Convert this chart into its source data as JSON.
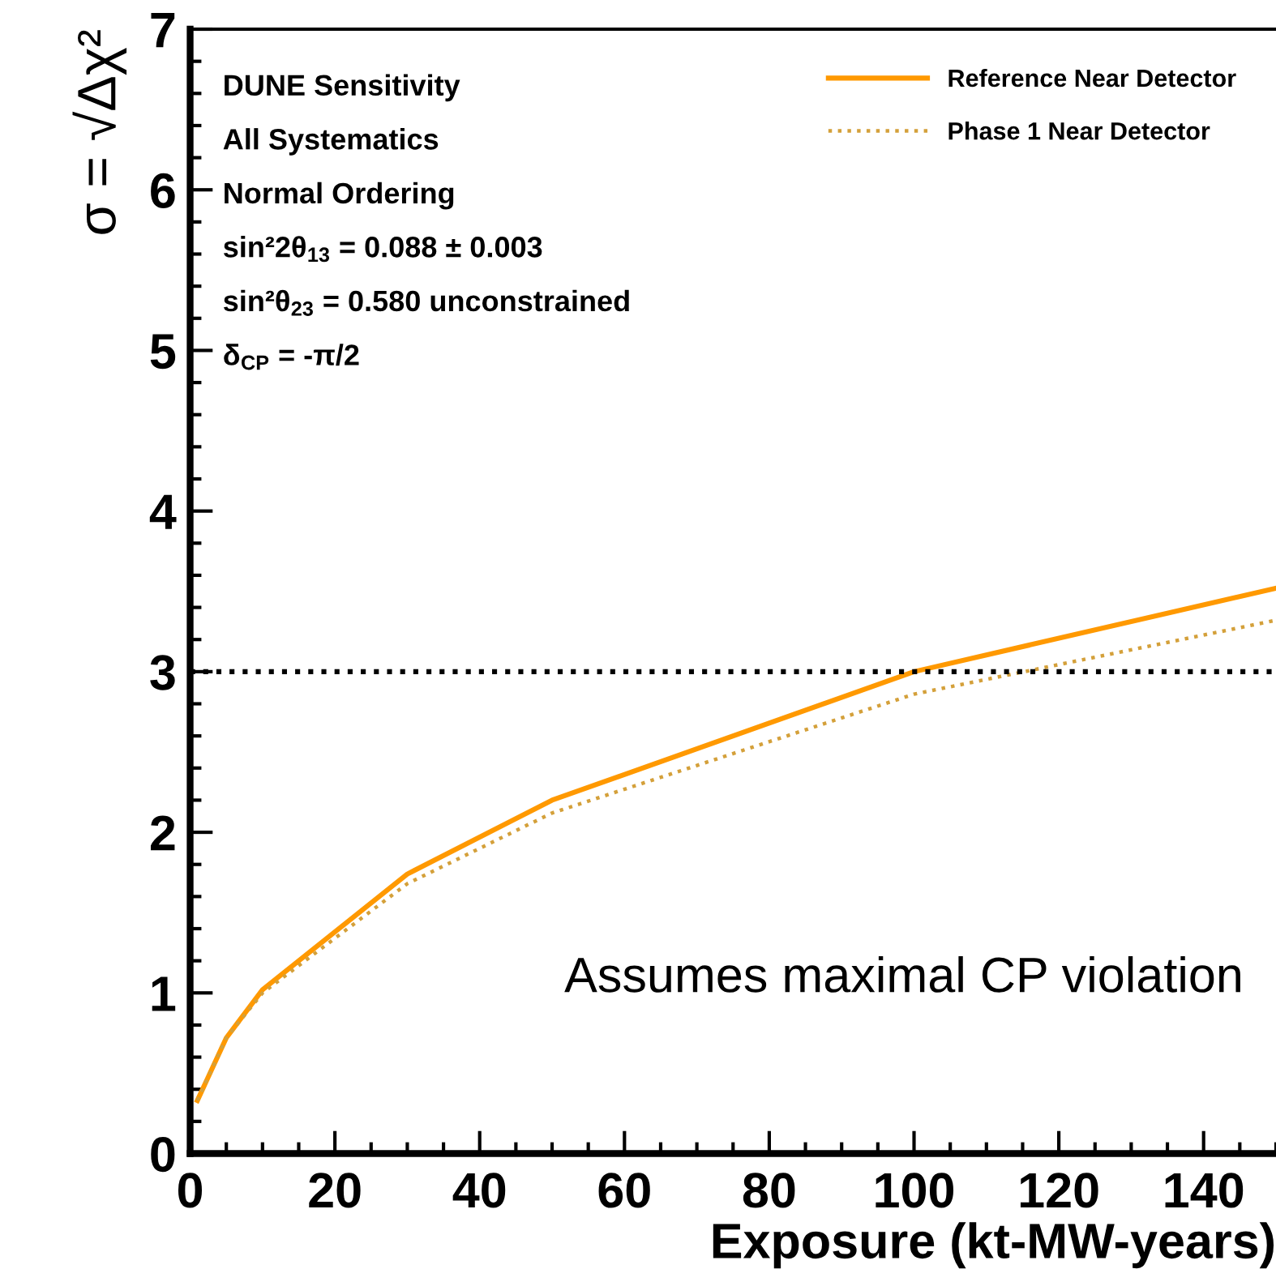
{
  "chart_data": {
    "type": "line",
    "xlabel": "Exposure (kt-MW-years)",
    "ylabel": "σ = √Δχ²",
    "xlim": [
      0,
      150
    ],
    "ylim": [
      0,
      7
    ],
    "xticks": [
      0,
      20,
      40,
      60,
      80,
      100,
      120,
      140
    ],
    "yticks": [
      0,
      1,
      2,
      3,
      4,
      5,
      6,
      7
    ],
    "grid": false,
    "legend": "top right",
    "marker": "none",
    "series": [
      {
        "name": "Reference Near Detector",
        "color": "#ff9900",
        "line_style": "solid",
        "x": [
          1,
          5,
          10,
          30,
          50,
          100,
          150
        ],
        "values": [
          0.33,
          0.72,
          1.02,
          1.74,
          2.2,
          3.0,
          3.52
        ]
      },
      {
        "name": "Phase 1 Near Detector",
        "color": "#d4a03a",
        "line_style": "dotted",
        "x": [
          1,
          5,
          10,
          30,
          50,
          100,
          150
        ],
        "values": [
          0.33,
          0.72,
          1.0,
          1.68,
          2.12,
          2.86,
          3.32
        ]
      }
    ],
    "ref_lines": [
      {
        "axis": "y",
        "value": 3,
        "color": "#000000",
        "line_style": "dotted"
      }
    ],
    "annotations": [
      "DUNE Sensitivity",
      "All Systematics",
      "Normal Ordering",
      "sin²2θ$_{13}$ = 0.088 ± 0.003",
      "sin²θ$_{23}$ = 0.580 unconstrained",
      "δ$_{CP}$ = -π/2",
      "Assumes maximal CP violation"
    ]
  }
}
